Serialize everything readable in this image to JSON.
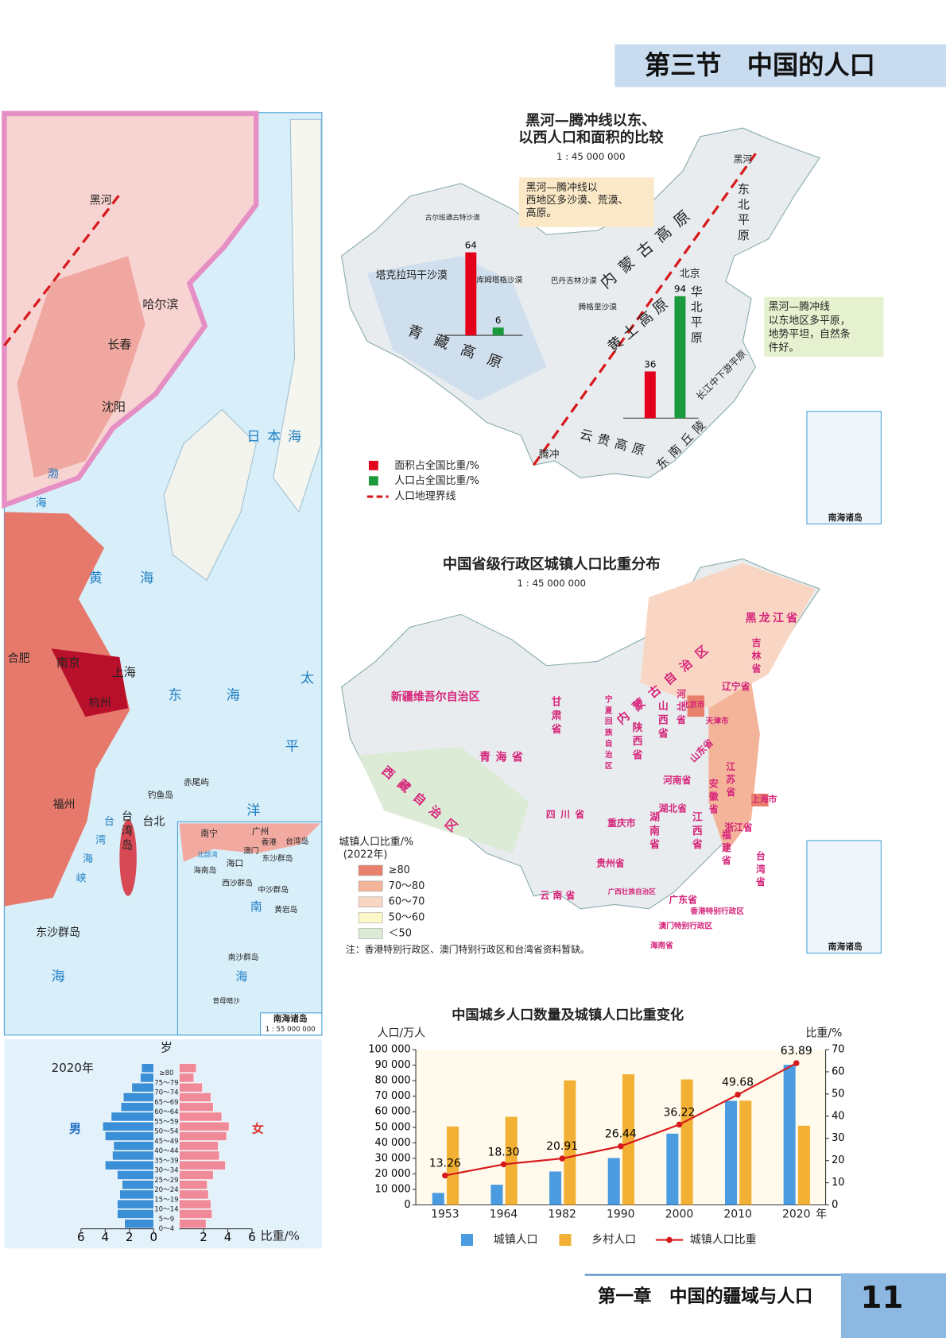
{
  "header": {
    "title": "第三节　中国的人口"
  },
  "footer": {
    "chapter": "第一章　中国的疆域与人口",
    "page": "11"
  },
  "left_map": {
    "labels": [
      "黑河",
      "哈尔滨",
      "长春",
      "沈阳",
      "日本海",
      "渤",
      "海",
      "黄",
      "海",
      "合肥",
      "南京",
      "上海",
      "杭州",
      "东",
      "海",
      "太",
      "平",
      "洋",
      "赤尾屿",
      "钓鱼岛",
      "福州",
      "台北",
      "台",
      "湾",
      "海",
      "峡",
      "台湾岛",
      "东沙群岛",
      "海",
      "南宁",
      "广州",
      "香港",
      "澳门",
      "台湾岛",
      "北部湾",
      "海南岛",
      "海口",
      "东沙群岛",
      "西沙群岛",
      "中沙群岛",
      "黄岩岛",
      "南",
      "海",
      "南沙群岛",
      "曾母暗沙",
      "南海诸岛",
      "1 : 55 000 000"
    ]
  },
  "map1": {
    "title": [
      "黑河—腾冲线以东、",
      "以西人口和面积的比较"
    ],
    "scale": "1 : 45 000 000",
    "callout_west": [
      "黑河—腾冲线以",
      "西地区多沙漠、荒漠、",
      "高原。"
    ],
    "callout_east": [
      "黑河—腾冲线",
      "以东地区多平原，",
      "地势平坦，自然条",
      "件好。"
    ],
    "labels": [
      "黑河",
      "腾冲",
      "北京",
      "古尔班通古特沙漠",
      "塔克拉玛干沙漠",
      "库姆塔格沙漠",
      "巴丹吉林沙漠",
      "腾格里沙漠",
      "内蒙古高原",
      "青藏高原",
      "黄土高原",
      "东北平原",
      "华北平原",
      "长江中下游平原",
      "云贵高原",
      "东南丘陵",
      "南海诸岛"
    ],
    "legend_line": "人口地理界线"
  },
  "map2": {
    "title": "中国省级行政区城镇人口比重分布",
    "scale": "1 : 45 000 000",
    "legend_title": "城镇人口比重/%",
    "legend_year": "(2022年)",
    "legend_items": [
      {
        "label": "≥80",
        "color": "#e8806c"
      },
      {
        "label": "70～80",
        "color": "#f3b49a"
      },
      {
        "label": "60～70",
        "color": "#f9d6c4"
      },
      {
        "label": "50～60",
        "color": "#fdf7c7"
      },
      {
        "label": "＜50",
        "color": "#dcebd6"
      }
    ],
    "note": "注：香港特别行政区、澳门特别行政区和台湾省资料暂缺。",
    "labels": [
      "黑龙江省",
      "吉林省",
      "辽宁省",
      "内蒙古自治区",
      "新疆维吾尔自治区",
      "西藏自治区",
      "青海省",
      "甘肃省",
      "宁夏回族自治区",
      "陕西省",
      "山西省",
      "河北省",
      "北京市",
      "天津市",
      "山东省",
      "河南省",
      "江苏省",
      "安徽省",
      "上海市",
      "湖北省",
      "四川省",
      "重庆市",
      "浙江省",
      "湖南省",
      "江西省",
      "贵州省",
      "云南省",
      "广西壮族自治区",
      "广东省",
      "福建省",
      "台湾省",
      "香港特别行政区",
      "澳门特别行政区",
      "海南省",
      "南海诸岛"
    ]
  },
  "chart_data": [
    {
      "type": "bar_line",
      "title": "中国城乡人口数量及城镇人口比重变化",
      "y_label": "人口/万人",
      "y2_label": "比重/%",
      "x_unit": "年",
      "categories": [
        "1953",
        "1964",
        "1982",
        "1990",
        "2000",
        "2010",
        "2020"
      ],
      "series": [
        {
          "name": "城镇人口",
          "color": "#4a9be0",
          "values": [
            7700,
            13000,
            21500,
            30200,
            45900,
            67000,
            90200
          ]
        },
        {
          "name": "乡村人口",
          "color": "#f2b134",
          "values": [
            50500,
            56700,
            80200,
            84100,
            80800,
            67100,
            51000
          ]
        },
        {
          "name": "城镇人口比重",
          "color": "#d7191c",
          "axis": "y2",
          "values": [
            13.26,
            18.3,
            20.91,
            26.44,
            36.22,
            49.68,
            63.89
          ],
          "value_labels": [
            "13.26",
            "18.30",
            "20.91",
            "26.44",
            "36.22",
            "49.68",
            "63.89"
          ]
        }
      ],
      "ylim": [
        0,
        100000
      ],
      "yticks": [
        0,
        {
          "value": 10000,
          "label": "10 000"
        },
        {
          "value": 20000,
          "label": "20 000"
        },
        {
          "value": 30000,
          "label": "30 000"
        },
        {
          "value": 40000,
          "label": "40 000"
        },
        {
          "value": 50000,
          "label": "50 000"
        },
        {
          "value": 60000,
          "label": "60 000"
        },
        {
          "value": 70000,
          "label": "70 000"
        },
        {
          "value": 80000,
          "label": "80 000"
        },
        {
          "value": 90000,
          "label": "90 000"
        },
        {
          "value": 100000,
          "label": "100 000"
        }
      ],
      "y2lim": [
        0,
        70
      ],
      "y2ticks": [
        0,
        10,
        20,
        30,
        40,
        50,
        60,
        70
      ]
    },
    {
      "type": "population_pyramid",
      "title": "2020年",
      "y_label": "岁",
      "x_label": "比重/%",
      "categories": [
        "0～4",
        "5～9",
        "10～14",
        "15～19",
        "20～24",
        "25～29",
        "30～34",
        "35～39",
        "40～44",
        "45～49",
        "50～54",
        "55～59",
        "60～64",
        "65～69",
        "70～74",
        "75～79",
        "≥80"
      ],
      "series": [
        {
          "name": "男",
          "color": "#3a8fd6",
          "values": [
            2.4,
            3.0,
            3.0,
            2.8,
            2.6,
            3.0,
            4.0,
            3.4,
            3.3,
            4.0,
            4.2,
            3.5,
            2.7,
            2.5,
            1.8,
            1.1,
            1.0
          ]
        },
        {
          "name": "女",
          "color": "#f08a98",
          "values": [
            2.2,
            2.7,
            2.6,
            2.4,
            2.3,
            2.8,
            3.8,
            3.3,
            3.2,
            3.9,
            4.1,
            3.5,
            2.8,
            2.6,
            1.9,
            1.2,
            1.4
          ]
        }
      ],
      "xlim": [
        0,
        6
      ],
      "male_xticks": [
        0,
        2,
        4,
        6
      ],
      "female_xticks": [
        2,
        4,
        6
      ]
    },
    {
      "type": "bar",
      "categories": [
        null,
        null
      ],
      "series": [
        {
          "name": "面积占全国比重/%",
          "color": "#e3001b",
          "values": [
            64,
            36
          ]
        },
        {
          "name": "人口占全国比重/%",
          "color": "#1a9a3c",
          "values": [
            6,
            94
          ]
        }
      ]
    }
  ]
}
